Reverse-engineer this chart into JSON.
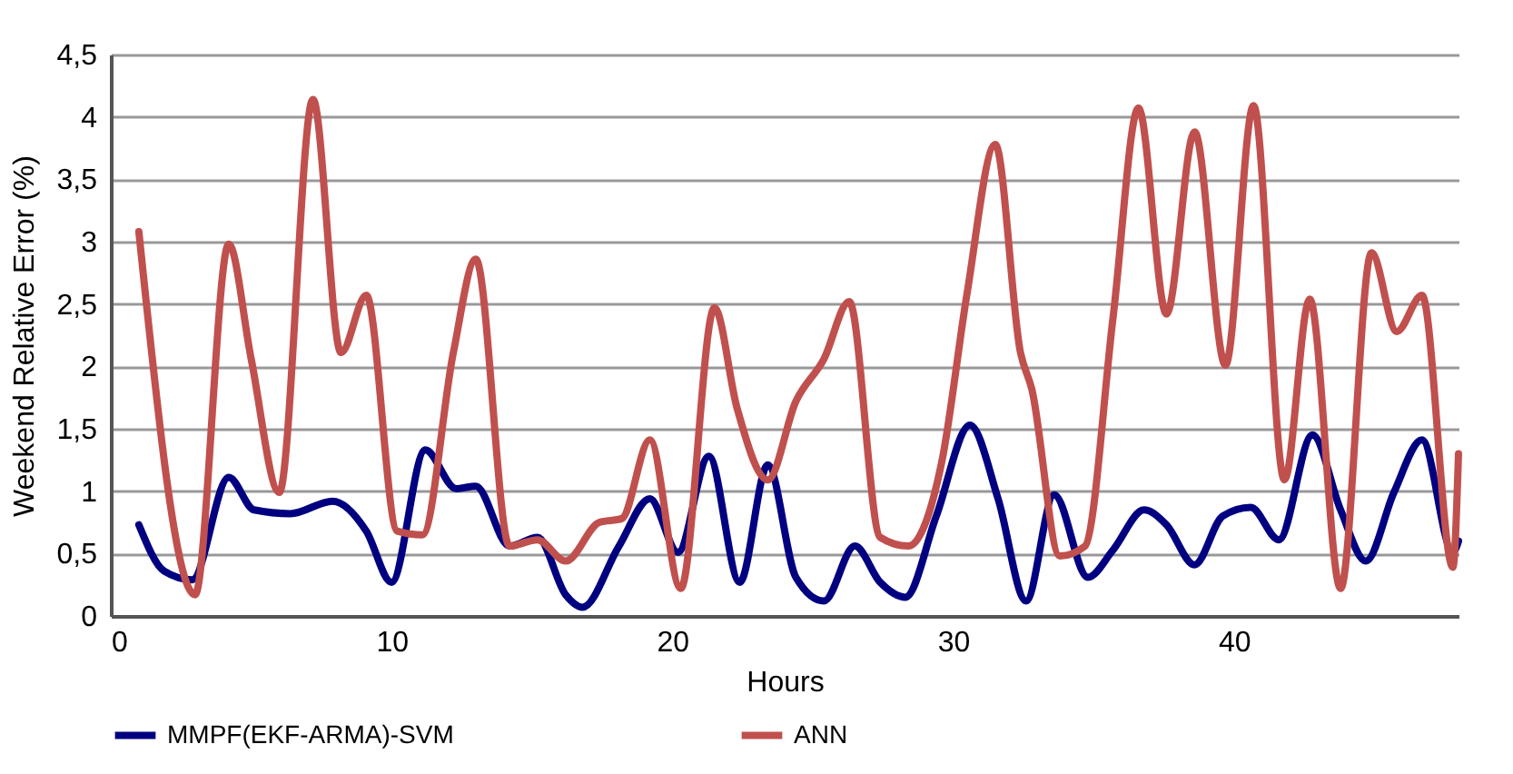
{
  "chart_data": {
    "type": "line",
    "xlabel": "Hours",
    "ylabel": "Weekend Relative Error (%)",
    "xlim": [
      0,
      48
    ],
    "xticks": [
      0,
      10,
      20,
      30,
      40
    ],
    "ylim": [
      0,
      4.5
    ],
    "yticks": [
      0,
      {
        "value": 0.5,
        "label": "0,5"
      },
      1,
      {
        "value": 1.5,
        "label": "1,5"
      },
      2,
      {
        "value": 2.5,
        "label": "2,5"
      },
      3,
      {
        "value": 3.5,
        "label": "3,5"
      },
      4,
      {
        "value": 4.5,
        "label": "4,5"
      }
    ],
    "grid": "y",
    "legend": "bottom",
    "marker": "none",
    "line_style": "solid",
    "series": [
      {
        "name": "MMPF(EKF-ARMA)-SVM",
        "color": "#000080",
        "x": [
          1,
          1.9,
          2.9,
          4.2,
          5.1,
          6.4,
          7.9,
          9.1,
          10,
          11.2,
          12.3,
          13,
          14.2,
          15.2,
          16.2,
          16.8,
          18.1,
          19.2,
          20.2,
          21.3,
          22.4,
          23.4,
          24.4,
          25.4,
          26.5,
          27.4,
          28.3,
          29.4,
          30.6,
          31.6,
          32.6,
          33.6,
          34.8,
          35.7,
          36.8,
          37.6,
          38.6,
          39.6,
          40.6,
          41.6,
          42.8,
          43.8,
          44.7,
          45.7,
          46.7,
          47.8,
          48
        ],
        "values": [
          0.73,
          0.36,
          0.29,
          1.11,
          0.85,
          0.82,
          0.92,
          0.68,
          0.27,
          1.33,
          1.02,
          1.04,
          0.56,
          0.63,
          0.17,
          0.07,
          0.56,
          0.94,
          0.51,
          1.28,
          0.27,
          1.21,
          0.31,
          0.12,
          0.56,
          0.27,
          0.15,
          0.8,
          1.53,
          0.94,
          0.12,
          0.97,
          0.31,
          0.53,
          0.85,
          0.73,
          0.41,
          0.8,
          0.87,
          0.61,
          1.45,
          0.85,
          0.44,
          0.99,
          1.41,
          0.51,
          0.6
        ]
      },
      {
        "name": "ANN",
        "color": "#c0504d",
        "x": [
          1,
          3,
          4.2,
          5,
          6,
          7.2,
          8.2,
          9.1,
          10.2,
          11.1,
          12.2,
          13,
          14.2,
          15.2,
          16.2,
          17.4,
          18.2,
          19.2,
          20.3,
          21.5,
          22.3,
          23.4,
          24.4,
          25.4,
          26.3,
          27.4,
          28.4,
          29.6,
          30.5,
          31.5,
          32.4,
          32.8,
          33.8,
          34.7,
          35.7,
          36.6,
          37.6,
          38.6,
          39.7,
          40.7,
          41.8,
          42.7,
          43.8,
          44.9,
          45.8,
          46.7,
          47.8,
          48
        ],
        "values": [
          3.08,
          0.17,
          2.98,
          2.06,
          0.99,
          4.14,
          2.11,
          2.57,
          0.68,
          0.65,
          2.11,
          2.86,
          0.56,
          0.61,
          0.44,
          0.75,
          0.78,
          1.41,
          0.22,
          2.47,
          1.67,
          1.09,
          1.72,
          2.06,
          2.52,
          0.63,
          0.56,
          1.24,
          2.59,
          3.78,
          2.11,
          1.82,
          0.48,
          0.56,
          2.4,
          4.07,
          2.42,
          3.88,
          2.01,
          4.09,
          1.09,
          2.54,
          0.22,
          2.91,
          2.28,
          2.57,
          0.39,
          1.3
        ]
      }
    ]
  }
}
